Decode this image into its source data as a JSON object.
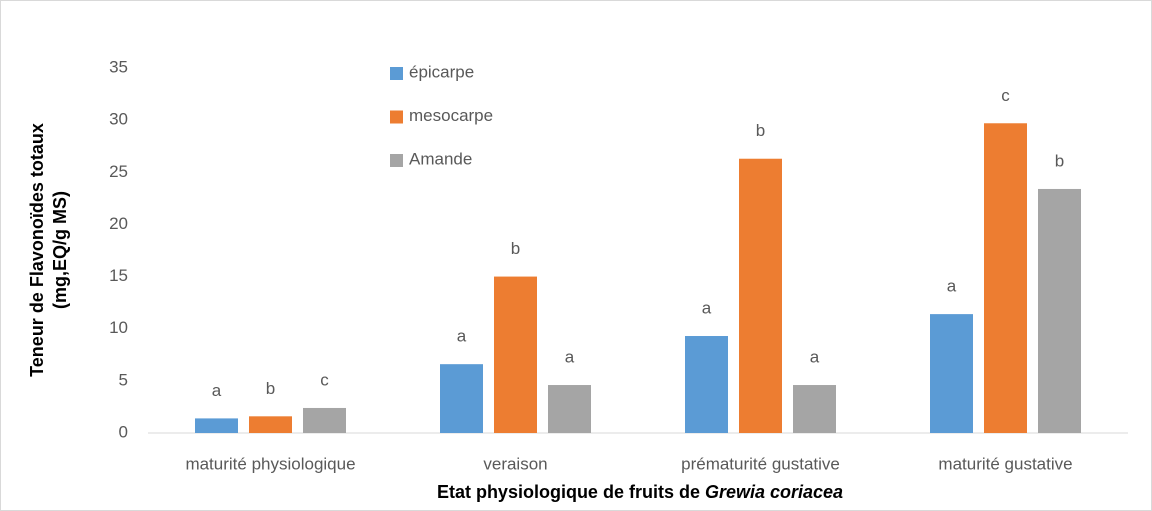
{
  "chart_data": {
    "type": "bar",
    "ylabel": [
      "Teneur de Flavonoïdes totaux",
      "(mg,EQ/g MS)"
    ],
    "xlabel": {
      "text": "Etat physiologique de fruits de",
      "species": "Grewia coriacea"
    },
    "categories": [
      "maturité physiologique",
      "veraison",
      "prématurité gustative",
      "maturité gustative"
    ],
    "series": [
      {
        "name": "épicarpe",
        "color": "#5b9bd5",
        "values": [
          1.4,
          6.6,
          9.3,
          11.4
        ],
        "labels": [
          "a",
          "a",
          "a",
          "a"
        ]
      },
      {
        "name": "mesocarpe",
        "color": "#ed7d31",
        "values": [
          1.6,
          15.0,
          26.3,
          29.7
        ],
        "labels": [
          "b",
          "b",
          "b",
          "c"
        ]
      },
      {
        "name": "Amande",
        "color": "#a5a5a5",
        "values": [
          2.4,
          4.6,
          4.6,
          23.4
        ],
        "labels": [
          "c",
          "a",
          "a",
          "b"
        ]
      }
    ],
    "ylim": [
      0,
      35
    ],
    "yticks": [
      0,
      5,
      10,
      15,
      20,
      25,
      30,
      35
    ],
    "grid": false,
    "legend": "top"
  }
}
